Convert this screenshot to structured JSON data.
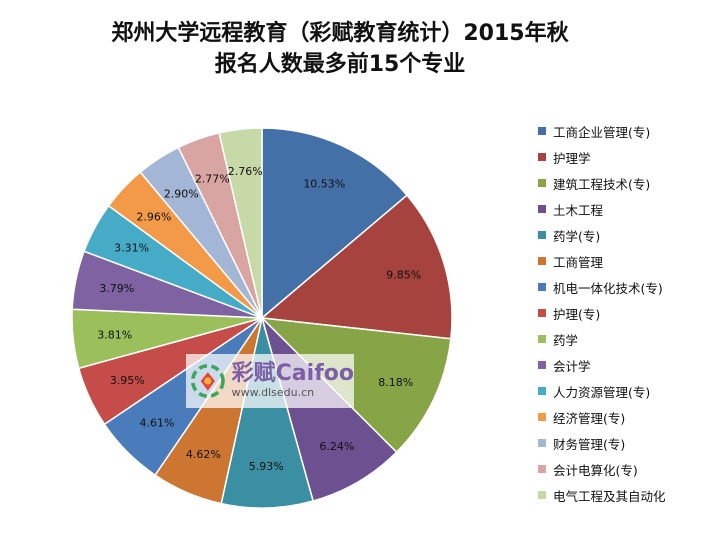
{
  "chart_data": {
    "type": "pie",
    "title": "郑州大学远程教育（彩赋教育统计）2015年秋",
    "subtitle": "报名人数最多前15个专业",
    "legend_position": "right",
    "slices": [
      {
        "label": "工商企业管理(专)",
        "value": 10.53,
        "display": "10.53%",
        "color": "#4470a8"
      },
      {
        "label": "护理学",
        "value": 9.85,
        "display": "9.85%",
        "color": "#a6433f"
      },
      {
        "label": "建筑工程技术(专)",
        "value": 8.18,
        "display": "8.18%",
        "color": "#87a446"
      },
      {
        "label": "土木工程",
        "value": 6.24,
        "display": "6.24%",
        "color": "#6c508f"
      },
      {
        "label": "药学(专)",
        "value": 5.93,
        "display": "5.93%",
        "color": "#3a8fa3"
      },
      {
        "label": "工商管理",
        "value": 4.62,
        "display": "4.62%",
        "color": "#cc7632"
      },
      {
        "label": "机电一体化技术(专)",
        "value": 4.61,
        "display": "4.61%",
        "color": "#4a7cbc"
      },
      {
        "label": "护理(专)",
        "value": 3.95,
        "display": "3.95%",
        "color": "#c64c49"
      },
      {
        "label": "药学",
        "value": 3.81,
        "display": "3.81%",
        "color": "#9bbf5a"
      },
      {
        "label": "会计学",
        "value": 3.79,
        "display": "3.79%",
        "color": "#7e62a2"
      },
      {
        "label": "人力资源管理(专)",
        "value": 3.31,
        "display": "3.31%",
        "color": "#46abc6"
      },
      {
        "label": "经济管理(专)",
        "value": 2.96,
        "display": "2.96%",
        "color": "#f29a48"
      },
      {
        "label": "财务管理(专)",
        "value": 2.9,
        "display": "2.90%",
        "color": "#a3b6d6"
      },
      {
        "label": "会计电算化(专)",
        "value": 2.77,
        "display": "2.77%",
        "color": "#d8a5a3"
      },
      {
        "label": "电气工程及其自动化",
        "value": 2.76,
        "display": "2.76%",
        "color": "#c8d9a8"
      }
    ]
  },
  "watermark": {
    "brand": "彩赋Caifoo",
    "url": "www.dlsedu.cn"
  }
}
